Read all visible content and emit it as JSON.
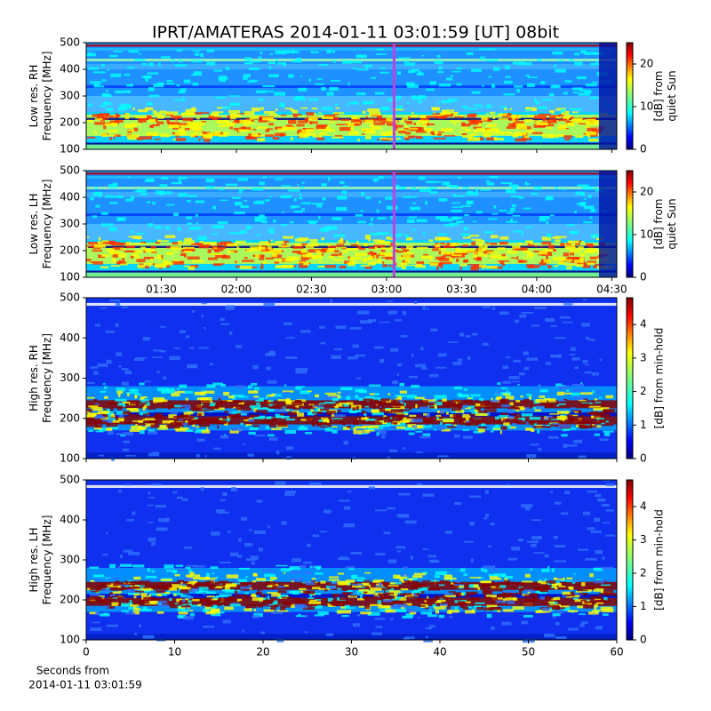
{
  "title": "IPRT/AMATERAS 2014-01-11 03:01:59 [UT]   08bit",
  "chart_data": [
    {
      "type": "heatmap",
      "variant": "low",
      "ylabel": [
        "Low res. RH",
        "Frequency [MHz]"
      ],
      "ylim": [
        100,
        500
      ],
      "yticks": [
        100,
        200,
        300,
        400,
        500
      ],
      "xlim": [
        60,
        272
      ],
      "xticks": [
        {
          "value": 90,
          "label": "01:30"
        },
        {
          "value": 120,
          "label": "02:00"
        },
        {
          "value": 150,
          "label": "02:30"
        },
        {
          "value": 180,
          "label": "03:00"
        },
        {
          "value": 210,
          "label": "03:30"
        },
        {
          "value": 240,
          "label": "04:00"
        },
        {
          "value": 270,
          "label": "04:30"
        }
      ],
      "show_xticklabels": false,
      "marker_x": 183,
      "marker_color": "#c040e0",
      "colorbar": {
        "label": [
          "[dB] from",
          "quiet Sun"
        ],
        "lim": [
          0,
          25
        ],
        "ticks": [
          0,
          10,
          20
        ]
      }
    },
    {
      "type": "heatmap",
      "variant": "low",
      "ylabel": [
        "Low res. LH",
        "Frequency [MHz]"
      ],
      "ylim": [
        100,
        500
      ],
      "yticks": [
        100,
        200,
        300,
        400,
        500
      ],
      "xlim": [
        60,
        272
      ],
      "xticks": [
        {
          "value": 90,
          "label": "01:30"
        },
        {
          "value": 120,
          "label": "02:00"
        },
        {
          "value": 150,
          "label": "02:30"
        },
        {
          "value": 180,
          "label": "03:00"
        },
        {
          "value": 210,
          "label": "03:30"
        },
        {
          "value": 240,
          "label": "04:00"
        },
        {
          "value": 270,
          "label": "04:30"
        }
      ],
      "show_xticklabels": true,
      "marker_x": 183,
      "marker_color": "#c040e0",
      "colorbar": {
        "label": [
          "[dB] from",
          "quiet Sun"
        ],
        "lim": [
          0,
          25
        ],
        "ticks": [
          0,
          10,
          20
        ]
      }
    },
    {
      "type": "heatmap",
      "variant": "high",
      "ylabel": [
        "High res. RH",
        "Frequency [MHz]"
      ],
      "ylim": [
        100,
        500
      ],
      "yticks": [
        100,
        200,
        300,
        400,
        500
      ],
      "xlim": [
        0,
        60
      ],
      "xticks": [
        0,
        10,
        20,
        30,
        40,
        50,
        60
      ],
      "show_xticklabels": false,
      "colorbar": {
        "label": [
          "[dB] from min-hold"
        ],
        "lim": [
          0,
          4.8
        ],
        "ticks": [
          0,
          1,
          2,
          3,
          4
        ]
      }
    },
    {
      "type": "heatmap",
      "variant": "high",
      "ylabel": [
        "High res. LH",
        "Frequency [MHz]"
      ],
      "ylim": [
        100,
        500
      ],
      "yticks": [
        100,
        200,
        300,
        400,
        500
      ],
      "xlim": [
        0,
        60
      ],
      "xticks": [
        0,
        10,
        20,
        30,
        40,
        50,
        60
      ],
      "show_xticklabels": true,
      "xlabel": [
        "Seconds from",
        "2014-01-11 03:01:59"
      ],
      "colorbar": {
        "label": [
          "[dB] from min-hold"
        ],
        "lim": [
          0,
          4.8
        ],
        "ticks": [
          0,
          1,
          2,
          3,
          4
        ]
      }
    }
  ]
}
